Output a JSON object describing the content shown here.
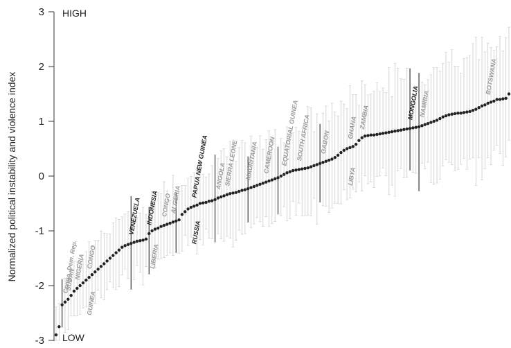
{
  "chart_data": {
    "type": "scatter",
    "ylabel": "Normalized political instability and violence index",
    "ylim": [
      -3,
      3
    ],
    "yticks": [
      "3",
      "2",
      "1",
      "0",
      "-1",
      "-2",
      "-3"
    ],
    "high_label": "HIGH",
    "low_label": "LOW",
    "colors": {
      "points": "#222222",
      "errorbar": "#c8c8c8",
      "highlight_bar": "#333333",
      "gray_label": "#9a9a9a",
      "axis": "#333333"
    },
    "n_points": 150,
    "min_value": -2.9,
    "max_value": 1.5,
    "series": [
      {
        "values": [
          -2.9,
          -2.75,
          -2.35,
          -2.3,
          -2.25,
          -2.18,
          -2.1,
          -2.05,
          -2.0,
          -1.95,
          -1.9,
          -1.85,
          -1.8,
          -1.75,
          -1.7,
          -1.65,
          -1.6,
          -1.55,
          -1.5,
          -1.45,
          -1.4,
          -1.35,
          -1.3,
          -1.27,
          -1.25,
          -1.23,
          -1.21,
          -1.19,
          -1.18,
          -1.17,
          -1.15,
          -1.05,
          -1.0,
          -0.97,
          -0.95,
          -0.92,
          -0.9,
          -0.88,
          -0.86,
          -0.84,
          -0.82,
          -0.8,
          -0.7,
          -0.65,
          -0.6,
          -0.57,
          -0.55,
          -0.53,
          -0.5,
          -0.49,
          -0.48,
          -0.46,
          -0.45,
          -0.43,
          -0.4,
          -0.38,
          -0.36,
          -0.34,
          -0.32,
          -0.31,
          -0.3,
          -0.28,
          -0.26,
          -0.25,
          -0.23,
          -0.21,
          -0.19,
          -0.17,
          -0.15,
          -0.13,
          -0.11,
          -0.09,
          -0.07,
          -0.05,
          -0.03,
          0.0,
          0.03,
          0.06,
          0.08,
          0.1,
          0.11,
          0.12,
          0.13,
          0.14,
          0.15,
          0.17,
          0.19,
          0.21,
          0.23,
          0.25,
          0.27,
          0.29,
          0.31,
          0.34,
          0.38,
          0.43,
          0.47,
          0.5,
          0.52,
          0.54,
          0.58,
          0.65,
          0.7,
          0.73,
          0.74,
          0.75,
          0.75,
          0.76,
          0.77,
          0.78,
          0.79,
          0.8,
          0.81,
          0.82,
          0.83,
          0.84,
          0.85,
          0.86,
          0.87,
          0.88,
          0.89,
          0.9,
          0.92,
          0.94,
          0.96,
          0.98,
          1.0,
          1.02,
          1.05,
          1.08,
          1.1,
          1.12,
          1.13,
          1.14,
          1.15,
          1.15,
          1.16,
          1.17,
          1.18,
          1.2,
          1.22,
          1.25,
          1.28,
          1.3,
          1.33,
          1.35,
          1.37,
          1.4,
          1.4,
          1.41,
          1.42,
          1.5
        ]
      }
    ],
    "highlighted_indices": [
      2,
      25,
      31,
      40,
      53,
      64,
      74,
      88,
      118,
      121
    ],
    "labels": [
      {
        "text": "Congo, Dem. Rep.",
        "index": 3,
        "tone": "gray"
      },
      {
        "text": "SUDAN",
        "index": 4,
        "tone": "gray"
      },
      {
        "text": "NIGERIA",
        "index": 7,
        "tone": "gray"
      },
      {
        "text": "CONGO",
        "index": 11,
        "tone": "gray"
      },
      {
        "text": "GUINEA",
        "index": 11,
        "tone": "gray"
      },
      {
        "text": "VENEZUELA",
        "index": 25,
        "tone": "black"
      },
      {
        "text": "INDONESIA",
        "index": 31,
        "tone": "black"
      },
      {
        "text": "LIBERIA",
        "index": 32,
        "tone": "gray"
      },
      {
        "text": "CONGO",
        "index": 36,
        "tone": "gray"
      },
      {
        "text": "ALGERIA",
        "index": 39,
        "tone": "gray"
      },
      {
        "text": "PAPUA NEW GUINEA",
        "index": 46,
        "tone": "black"
      },
      {
        "text": "RUSSIA",
        "index": 46,
        "tone": "black"
      },
      {
        "text": "ANGOLA",
        "index": 54,
        "tone": "gray"
      },
      {
        "text": "SIERRA LEONE",
        "index": 57,
        "tone": "gray"
      },
      {
        "text": "MAURITANIA",
        "index": 64,
        "tone": "gray"
      },
      {
        "text": "CAMEROON",
        "index": 70,
        "tone": "gray"
      },
      {
        "text": "EQUATORIAL GUINEA",
        "index": 76,
        "tone": "gray"
      },
      {
        "text": "SOUTH AFRICA",
        "index": 81,
        "tone": "gray"
      },
      {
        "text": "GABON",
        "index": 89,
        "tone": "gray"
      },
      {
        "text": "GHANA",
        "index": 98,
        "tone": "gray"
      },
      {
        "text": "LIBYA",
        "index": 98,
        "tone": "gray"
      },
      {
        "text": "ZAMBIA",
        "index": 102,
        "tone": "gray"
      },
      {
        "text": "MONGOLIA",
        "index": 118,
        "tone": "black"
      },
      {
        "text": "NAMIBIA",
        "index": 122,
        "tone": "gray"
      },
      {
        "text": "BOTSWANA",
        "index": 144,
        "tone": "gray"
      }
    ]
  }
}
